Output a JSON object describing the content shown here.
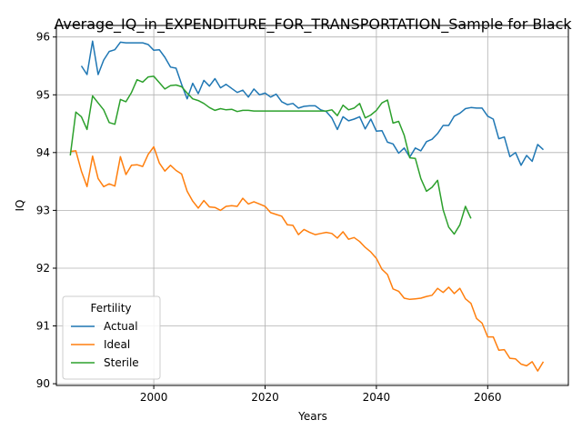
{
  "chart_data": {
    "type": "line",
    "title": "Average_IQ_in_EXPENDITURE_FOR_TRANSPORTATION_Sample for Black",
    "xlabel": "Years",
    "ylabel": "IQ",
    "xlim": [
      1982.5,
      2074.5
    ],
    "ylim": [
      89.97,
      96.2
    ],
    "xticks": [
      2000,
      2020,
      2040,
      2060
    ],
    "yticks": [
      90,
      91,
      92,
      93,
      94,
      95,
      96
    ],
    "grid": true,
    "legend": {
      "title": "Fertility",
      "position": "lower-left"
    },
    "series": [
      {
        "name": "Actual",
        "color": "#1f77b4",
        "x": [
          1987,
          1988,
          1989,
          1990,
          1991,
          1992,
          1993,
          1994,
          1995,
          1996,
          1997,
          1998,
          1999,
          2000,
          2001,
          2002,
          2003,
          2004,
          2005,
          2006,
          2007,
          2008,
          2009,
          2010,
          2011,
          2012,
          2013,
          2014,
          2015,
          2016,
          2017,
          2018,
          2019,
          2020,
          2021,
          2022,
          2023,
          2024,
          2025,
          2026,
          2027,
          2028,
          2029,
          2030,
          2031,
          2032,
          2033,
          2034,
          2035,
          2036,
          2037,
          2038,
          2039,
          2040,
          2041,
          2042,
          2043,
          2044,
          2045,
          2046,
          2047,
          2048,
          2049,
          2050,
          2051,
          2052,
          2053,
          2054,
          2055,
          2056,
          2057,
          2058,
          2059,
          2060,
          2061,
          2062,
          2063,
          2064,
          2065,
          2066,
          2067,
          2068,
          2069,
          2070
        ],
        "values": [
          95.5,
          95.35,
          95.93,
          95.35,
          95.6,
          95.75,
          95.78,
          95.91,
          95.9,
          95.9,
          95.9,
          95.9,
          95.87,
          95.77,
          95.78,
          95.65,
          95.48,
          95.46,
          95.18,
          94.93,
          95.2,
          95.02,
          95.25,
          95.15,
          95.28,
          95.12,
          95.18,
          95.11,
          95.04,
          95.08,
          94.96,
          95.1,
          95.0,
          95.03,
          94.96,
          95.01,
          94.88,
          94.83,
          94.85,
          94.77,
          94.8,
          94.81,
          94.81,
          94.74,
          94.71,
          94.6,
          94.4,
          94.62,
          94.55,
          94.58,
          94.62,
          94.41,
          94.58,
          94.37,
          94.38,
          94.18,
          94.15,
          93.99,
          94.08,
          93.92,
          94.08,
          94.03,
          94.19,
          94.23,
          94.33,
          94.47,
          94.47,
          94.63,
          94.68,
          94.76,
          94.78,
          94.77,
          94.77,
          94.63,
          94.58,
          94.24,
          94.27,
          93.93,
          94.0,
          93.78,
          93.95,
          93.85,
          94.14,
          94.05
        ]
      },
      {
        "name": "Ideal",
        "color": "#ff7f0e",
        "x": [
          1985,
          1986,
          1987,
          1988,
          1989,
          1990,
          1991,
          1992,
          1993,
          1994,
          1995,
          1996,
          1997,
          1998,
          1999,
          2000,
          2001,
          2002,
          2003,
          2004,
          2005,
          2006,
          2007,
          2008,
          2009,
          2010,
          2011,
          2012,
          2013,
          2014,
          2015,
          2016,
          2017,
          2018,
          2019,
          2020,
          2021,
          2022,
          2023,
          2024,
          2025,
          2026,
          2027,
          2028,
          2029,
          2030,
          2031,
          2032,
          2033,
          2034,
          2035,
          2036,
          2037,
          2038,
          2039,
          2040,
          2041,
          2042,
          2043,
          2044,
          2045,
          2046,
          2047,
          2048,
          2049,
          2050,
          2051,
          2052,
          2053,
          2054,
          2055,
          2056,
          2057,
          2058,
          2059,
          2060,
          2061,
          2062,
          2063,
          2064,
          2065,
          2066,
          2067,
          2068,
          2069,
          2070
        ],
        "values": [
          94.02,
          94.03,
          93.68,
          93.41,
          93.94,
          93.55,
          93.41,
          93.46,
          93.42,
          93.93,
          93.62,
          93.78,
          93.79,
          93.76,
          93.97,
          94.1,
          93.82,
          93.68,
          93.78,
          93.69,
          93.63,
          93.33,
          93.16,
          93.04,
          93.17,
          93.06,
          93.05,
          93.0,
          93.07,
          93.08,
          93.07,
          93.21,
          93.11,
          93.15,
          93.11,
          93.07,
          92.96,
          92.93,
          92.9,
          92.75,
          92.74,
          92.58,
          92.67,
          92.62,
          92.58,
          92.6,
          92.62,
          92.6,
          92.52,
          92.63,
          92.5,
          92.53,
          92.46,
          92.36,
          92.28,
          92.17,
          91.98,
          91.89,
          91.64,
          91.6,
          91.48,
          91.46,
          91.47,
          91.48,
          91.51,
          91.53,
          91.65,
          91.58,
          91.67,
          91.56,
          91.65,
          91.47,
          91.39,
          91.13,
          91.05,
          90.81,
          90.81,
          90.58,
          90.59,
          90.44,
          90.43,
          90.34,
          90.31,
          90.38,
          90.22,
          90.38
        ]
      },
      {
        "name": "Sterile",
        "color": "#2ca02c",
        "x": [
          1985,
          1986,
          1987,
          1988,
          1989,
          1990,
          1991,
          1992,
          1993,
          1994,
          1995,
          1996,
          1997,
          1998,
          1999,
          2000,
          2001,
          2002,
          2003,
          2004,
          2005,
          2006,
          2007,
          2008,
          2009,
          2010,
          2011,
          2012,
          2013,
          2014,
          2015,
          2016,
          2017,
          2018,
          2019,
          2020,
          2021,
          2022,
          2023,
          2024,
          2025,
          2026,
          2027,
          2028,
          2029,
          2030,
          2031,
          2032,
          2033,
          2034,
          2035,
          2036,
          2037,
          2038,
          2039,
          2040,
          2041,
          2042,
          2043,
          2044,
          2045,
          2046,
          2047,
          2048,
          2049,
          2050,
          2051,
          2052,
          2053,
          2054,
          2055,
          2056,
          2057
        ],
        "values": [
          93.95,
          94.7,
          94.62,
          94.4,
          94.98,
          94.86,
          94.74,
          94.52,
          94.49,
          94.92,
          94.88,
          95.04,
          95.26,
          95.22,
          95.31,
          95.32,
          95.21,
          95.1,
          95.16,
          95.17,
          95.14,
          95.03,
          94.93,
          94.9,
          94.85,
          94.78,
          94.73,
          94.76,
          94.74,
          94.75,
          94.71,
          94.73,
          94.73,
          94.72,
          94.72,
          94.72,
          94.72,
          94.72,
          94.72,
          94.72,
          94.72,
          94.72,
          94.72,
          94.72,
          94.72,
          94.72,
          94.72,
          94.74,
          94.64,
          94.82,
          94.74,
          94.77,
          94.85,
          94.6,
          94.65,
          94.73,
          94.86,
          94.91,
          94.51,
          94.54,
          94.3,
          93.91,
          93.9,
          93.55,
          93.33,
          93.4,
          93.52,
          93.01,
          92.71,
          92.59,
          92.75,
          93.07,
          92.86
        ]
      }
    ]
  }
}
